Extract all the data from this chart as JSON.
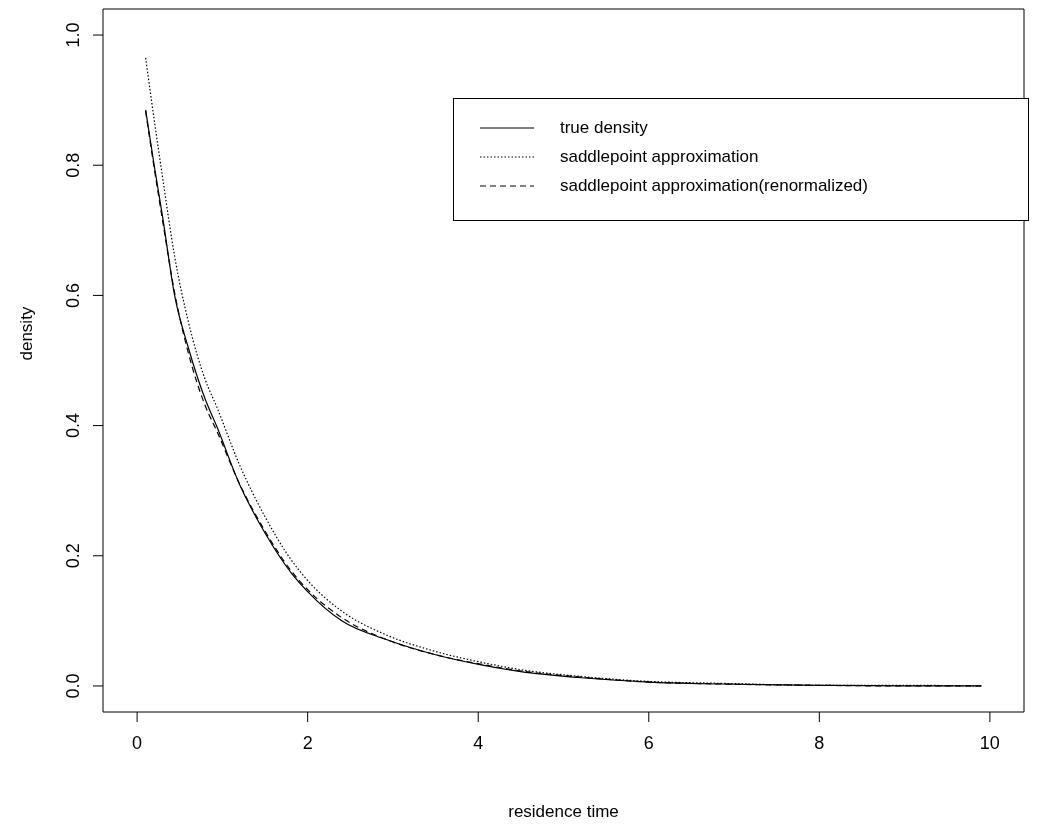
{
  "chart_data": {
    "type": "line",
    "xlabel": "residence time",
    "ylabel": "density",
    "x": [
      0.1,
      0.2,
      0.3,
      0.44,
      0.6,
      0.8,
      0.93,
      1.2,
      1.5,
      1.8,
      2.0,
      2.4,
      2.93,
      3.5,
      4.05,
      4.5,
      5.17,
      6,
      6.86,
      8,
      9,
      9.9
    ],
    "series": [
      {
        "name": "true density",
        "color": "#000000",
        "line_style": "solid",
        "values": [
          0.885,
          0.8,
          0.72,
          0.6,
          0.52,
          0.44,
          0.4,
          0.31,
          0.235,
          0.175,
          0.145,
          0.1,
          0.071,
          0.048,
          0.032,
          0.022,
          0.013,
          0.006,
          0.003,
          0.001,
          0,
          0
        ]
      },
      {
        "name": "saddlepoint approximation",
        "color": "#000000",
        "line_style": "dotted",
        "values": [
          0.965,
          0.87,
          0.78,
          0.66,
          0.56,
          0.47,
          0.43,
          0.34,
          0.26,
          0.195,
          0.162,
          0.115,
          0.078,
          0.053,
          0.036,
          0.025,
          0.015,
          0.007,
          0.004,
          0.001,
          0.001,
          0
        ]
      },
      {
        "name": "saddlepoint approximation(renormalized)",
        "color": "#000000",
        "line_style": "dashed",
        "values": [
          0.883,
          0.796,
          0.714,
          0.604,
          0.512,
          0.43,
          0.393,
          0.311,
          0.238,
          0.178,
          0.148,
          0.105,
          0.071,
          0.048,
          0.033,
          0.023,
          0.014,
          0.006,
          0.003,
          0.001,
          0,
          0
        ]
      }
    ],
    "xlim": [
      -0.4,
      10.4
    ],
    "xticks": [
      0,
      2,
      4,
      6,
      8,
      10
    ],
    "ylim": [
      -0.04,
      1.04
    ],
    "yticks": [
      {
        "value": 0,
        "label": "0.0"
      },
      {
        "value": 0.2,
        "label": "0.2"
      },
      {
        "value": 0.4,
        "label": "0.4"
      },
      {
        "value": 0.6,
        "label": "0.6"
      },
      {
        "value": 0.8,
        "label": "0.8"
      },
      {
        "value": 1,
        "label": "1.0"
      }
    ],
    "grid": false,
    "legend": "top right",
    "marker": "none"
  }
}
